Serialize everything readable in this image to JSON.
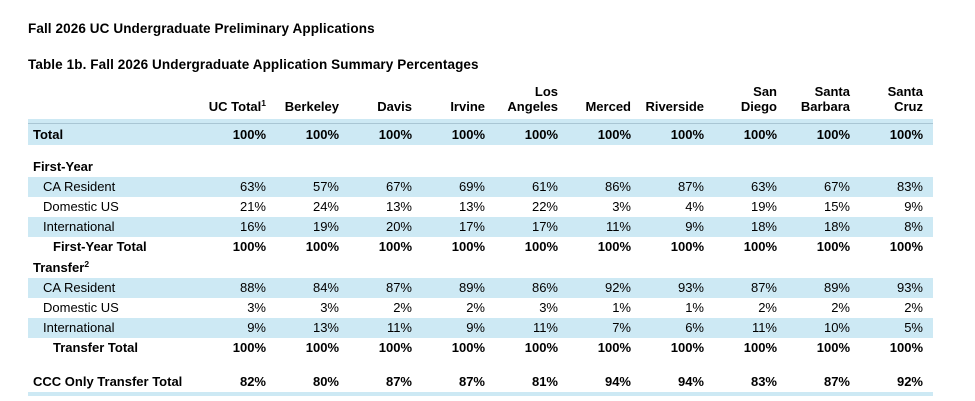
{
  "page": {
    "title": "Fall 2026 UC Undergraduate Preliminary Applications",
    "subtitle": "Table 1b. Fall 2026 Undergraduate Application Summary Percentages"
  },
  "colors": {
    "row_highlight": "#cde9f4",
    "header_rule": "#a9c6d4",
    "text": "#000000"
  },
  "table": {
    "columns": [
      {
        "label": "UC Total",
        "sup": "1"
      },
      {
        "label": "Berkeley"
      },
      {
        "label": "Davis"
      },
      {
        "label": "Irvine"
      },
      {
        "label": "Los Angeles"
      },
      {
        "label": "Merced"
      },
      {
        "label": "Riverside"
      },
      {
        "label": "San Diego"
      },
      {
        "label": "Santa Barbara"
      },
      {
        "label": "Santa Cruz"
      }
    ],
    "rows": [
      {
        "label": "Total",
        "shaded": true,
        "bold": true,
        "total": true,
        "values": [
          "100%",
          "100%",
          "100%",
          "100%",
          "100%",
          "100%",
          "100%",
          "100%",
          "100%",
          "100%"
        ]
      },
      {
        "type": "spacer"
      },
      {
        "label": "First-Year",
        "section": true,
        "values": []
      },
      {
        "label": "CA Resident",
        "indent": 1,
        "shaded": true,
        "values": [
          "63%",
          "57%",
          "67%",
          "69%",
          "61%",
          "86%",
          "87%",
          "63%",
          "67%",
          "83%"
        ]
      },
      {
        "label": "Domestic US",
        "indent": 1,
        "values": [
          "21%",
          "24%",
          "13%",
          "13%",
          "22%",
          "3%",
          "4%",
          "19%",
          "15%",
          "9%"
        ]
      },
      {
        "label": "International",
        "indent": 1,
        "shaded": true,
        "values": [
          "16%",
          "19%",
          "20%",
          "17%",
          "17%",
          "11%",
          "9%",
          "18%",
          "18%",
          "8%"
        ]
      },
      {
        "label": "First-Year Total",
        "indent": 2,
        "bold": true,
        "values": [
          "100%",
          "100%",
          "100%",
          "100%",
          "100%",
          "100%",
          "100%",
          "100%",
          "100%",
          "100%"
        ]
      },
      {
        "label": "Transfer",
        "sup": "2",
        "section": true,
        "values": []
      },
      {
        "label": "CA Resident",
        "indent": 1,
        "shaded": true,
        "values": [
          "88%",
          "84%",
          "87%",
          "89%",
          "86%",
          "92%",
          "93%",
          "87%",
          "89%",
          "93%"
        ]
      },
      {
        "label": "Domestic US",
        "indent": 1,
        "values": [
          "3%",
          "3%",
          "2%",
          "2%",
          "3%",
          "1%",
          "1%",
          "2%",
          "2%",
          "2%"
        ]
      },
      {
        "label": "International",
        "indent": 1,
        "shaded": true,
        "values": [
          "9%",
          "13%",
          "11%",
          "9%",
          "11%",
          "7%",
          "6%",
          "11%",
          "10%",
          "5%"
        ]
      },
      {
        "label": "Transfer Total",
        "indent": 2,
        "bold": true,
        "values": [
          "100%",
          "100%",
          "100%",
          "100%",
          "100%",
          "100%",
          "100%",
          "100%",
          "100%",
          "100%"
        ]
      },
      {
        "type": "spacer",
        "wide": true
      },
      {
        "label": "CCC Only Transfer Total",
        "bold": true,
        "values": [
          "82%",
          "80%",
          "87%",
          "87%",
          "81%",
          "94%",
          "94%",
          "83%",
          "87%",
          "92%"
        ]
      }
    ]
  }
}
